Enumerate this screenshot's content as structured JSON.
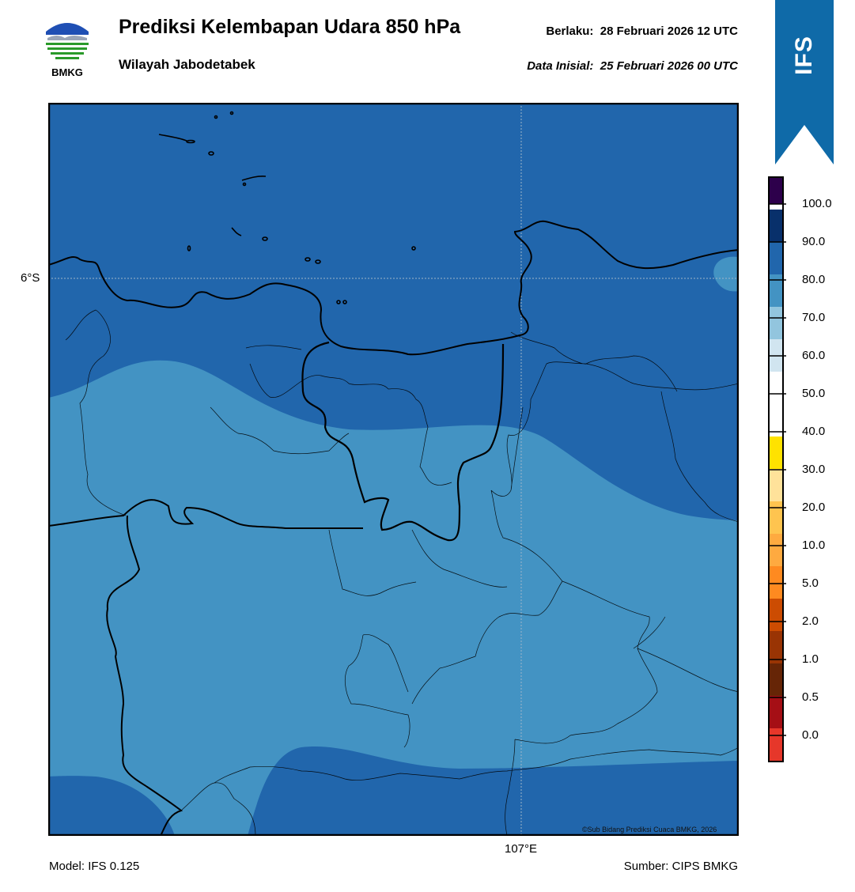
{
  "header": {
    "logo_text": "BMKG",
    "title": "Prediksi Kelembapan Udara 850 hPa",
    "subtitle": "Wilayah Jabodetabek",
    "valid_label": "Berlaku:",
    "valid_time": "28 Februari 2026 12 UTC",
    "init_label": "Data Inisial:",
    "init_time": "25 Februari 2026 00 UTC"
  },
  "model_badge": {
    "label": "IFS",
    "color": "#0f6aa8"
  },
  "map": {
    "lat_label": "6°S",
    "lon_label": "107°E",
    "copyright": "©Sub Bidang Prediksi Cuaca BMKG, 2026",
    "colors": {
      "humid_80_90": "#2166ac",
      "humid_70_80": "#4393c3",
      "boundary": "#000000"
    }
  },
  "footer": {
    "model": "Model: IFS 0.125",
    "source": "Sumber: CIPS BMKG"
  },
  "legend": {
    "bins": [
      {
        "color": "#2d004b"
      },
      {
        "color": "#08306b"
      },
      {
        "color": "#2166ac"
      },
      {
        "color": "#4393c3"
      },
      {
        "color": "#92c5de"
      },
      {
        "color": "#d1e5f0"
      },
      {
        "color": "#ffffff"
      },
      {
        "color": "#ffffff"
      },
      {
        "color": "#ffe200"
      },
      {
        "color": "#ffe29a"
      },
      {
        "color": "#fec44f"
      },
      {
        "color": "#feaa40"
      },
      {
        "color": "#fe8a20"
      },
      {
        "color": "#cc4c02"
      },
      {
        "color": "#993404"
      },
      {
        "color": "#662506"
      },
      {
        "color": "#a50f15"
      },
      {
        "color": "#e6372a"
      }
    ],
    "ticks": [
      "100.0",
      "90.0",
      "80.0",
      "70.0",
      "60.0",
      "50.0",
      "40.0",
      "30.0",
      "20.0",
      "10.0",
      "5.0",
      "2.0",
      "1.0",
      "0.5",
      "0.0"
    ]
  }
}
